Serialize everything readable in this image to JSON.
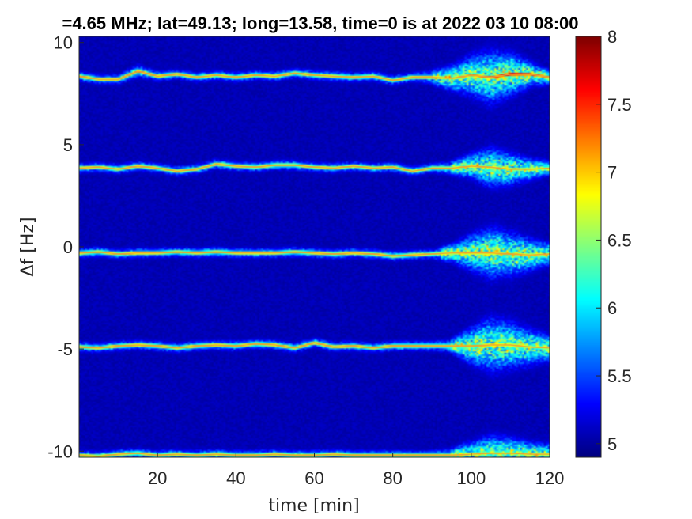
{
  "chart_data": {
    "type": "heatmap",
    "title": "=4.65 MHz;  lat=49.13; long=13.58, time=0 is at 2022 03 10 08:00",
    "xlabel": "time [min]",
    "ylabel": "Δf [Hz]",
    "xlim": [
      0,
      120
    ],
    "ylim": [
      -10.3,
      10.3
    ],
    "x_ticks": [
      20,
      40,
      60,
      80,
      100,
      120
    ],
    "x_tick_labels": [
      "20",
      "40",
      "60",
      "80",
      "100",
      "120"
    ],
    "y_ticks": [
      10,
      5,
      0,
      -5,
      -10
    ],
    "y_tick_labels": [
      "10",
      "5",
      "0",
      "-5",
      "-10"
    ],
    "colormap": "jet",
    "clim": [
      4.9,
      8
    ],
    "colorbar_ticks": [
      8,
      7.5,
      7,
      6.5,
      6,
      5.5,
      5
    ],
    "colorbar_tick_labels": [
      "8",
      "7.5",
      "7",
      "6.5",
      "6",
      "5.5",
      "5"
    ],
    "background_level": 5.0,
    "series": [
      {
        "center_hz": 8.4,
        "x": [
          0,
          5,
          10,
          15,
          20,
          25,
          30,
          35,
          40,
          45,
          50,
          55,
          60,
          65,
          70,
          75,
          80,
          85,
          90,
          95,
          100,
          105,
          110,
          115,
          120
        ],
        "y": [
          8.35,
          8.2,
          8.2,
          8.6,
          8.35,
          8.45,
          8.3,
          8.4,
          8.3,
          8.4,
          8.35,
          8.5,
          8.4,
          8.35,
          8.3,
          8.35,
          8.15,
          8.3,
          8.3,
          8.25,
          8.4,
          8.3,
          8.45,
          8.45,
          8.3
        ],
        "peak": [
          7.2,
          7.0,
          7.1,
          7.3,
          7.1,
          7.0,
          7.0,
          7.0,
          7.0,
          7.1,
          7.0,
          7.1,
          7.0,
          7.0,
          7.0,
          7.0,
          7.0,
          7.0,
          7.1,
          7.0,
          7.3,
          7.4,
          7.9,
          7.6,
          7.2
        ],
        "spread": [
          0.15,
          0.15,
          0.15,
          0.2,
          0.15,
          0.15,
          0.15,
          0.15,
          0.15,
          0.15,
          0.15,
          0.15,
          0.15,
          0.15,
          0.15,
          0.15,
          0.15,
          0.15,
          0.2,
          0.35,
          0.55,
          0.75,
          0.6,
          0.35,
          0.2
        ]
      },
      {
        "center_hz": 3.9,
        "x": [
          0,
          5,
          10,
          15,
          20,
          25,
          30,
          35,
          40,
          45,
          50,
          55,
          60,
          65,
          70,
          75,
          80,
          85,
          90,
          95,
          100,
          105,
          110,
          115,
          120
        ],
        "y": [
          3.85,
          3.9,
          3.8,
          3.95,
          3.85,
          3.7,
          3.8,
          4.05,
          3.95,
          3.9,
          4.0,
          4.0,
          3.9,
          3.85,
          3.95,
          3.85,
          3.9,
          3.7,
          3.85,
          3.85,
          3.95,
          3.9,
          3.8,
          3.8,
          3.85
        ],
        "peak": [
          7.1,
          7.0,
          7.0,
          7.1,
          7.0,
          7.0,
          7.0,
          7.0,
          7.0,
          7.0,
          7.0,
          7.0,
          7.0,
          7.0,
          7.0,
          7.0,
          7.0,
          7.0,
          7.0,
          7.0,
          7.1,
          7.0,
          6.9,
          6.8,
          6.9
        ],
        "spread": [
          0.15,
          0.15,
          0.15,
          0.15,
          0.15,
          0.15,
          0.15,
          0.15,
          0.15,
          0.15,
          0.15,
          0.15,
          0.15,
          0.15,
          0.15,
          0.15,
          0.15,
          0.15,
          0.15,
          0.2,
          0.35,
          0.55,
          0.45,
          0.3,
          0.2
        ]
      },
      {
        "center_hz": -0.3,
        "x": [
          0,
          5,
          10,
          15,
          20,
          25,
          30,
          35,
          40,
          45,
          50,
          55,
          60,
          65,
          70,
          75,
          80,
          85,
          90,
          95,
          100,
          105,
          110,
          115,
          120
        ],
        "y": [
          -0.3,
          -0.25,
          -0.35,
          -0.3,
          -0.3,
          -0.25,
          -0.3,
          -0.25,
          -0.3,
          -0.3,
          -0.3,
          -0.25,
          -0.3,
          -0.35,
          -0.3,
          -0.35,
          -0.45,
          -0.4,
          -0.35,
          -0.3,
          -0.3,
          -0.3,
          -0.35,
          -0.4,
          -0.35
        ],
        "peak": [
          7.2,
          7.1,
          7.1,
          7.2,
          7.1,
          7.1,
          7.1,
          7.1,
          7.1,
          7.1,
          7.1,
          7.1,
          7.1,
          7.1,
          7.1,
          7.1,
          7.1,
          7.1,
          7.0,
          7.0,
          7.2,
          7.2,
          7.1,
          7.0,
          6.9
        ],
        "spread": [
          0.15,
          0.15,
          0.15,
          0.15,
          0.15,
          0.15,
          0.15,
          0.15,
          0.15,
          0.15,
          0.15,
          0.15,
          0.15,
          0.15,
          0.15,
          0.15,
          0.15,
          0.15,
          0.15,
          0.25,
          0.5,
          0.7,
          0.6,
          0.45,
          0.3
        ]
      },
      {
        "center_hz": -4.9,
        "x": [
          0,
          5,
          10,
          15,
          20,
          25,
          30,
          35,
          40,
          45,
          50,
          55,
          60,
          65,
          70,
          75,
          80,
          85,
          90,
          95,
          100,
          105,
          110,
          115,
          120
        ],
        "y": [
          -4.9,
          -4.95,
          -4.85,
          -4.8,
          -4.85,
          -4.95,
          -4.85,
          -4.8,
          -4.85,
          -4.75,
          -4.8,
          -4.95,
          -4.7,
          -4.9,
          -4.85,
          -4.95,
          -4.85,
          -4.85,
          -4.85,
          -4.85,
          -4.85,
          -4.8,
          -4.8,
          -4.9,
          -4.95
        ],
        "peak": [
          7.2,
          7.1,
          7.1,
          7.1,
          7.1,
          7.1,
          7.1,
          7.1,
          7.1,
          7.1,
          7.1,
          7.1,
          7.1,
          7.1,
          7.1,
          7.1,
          7.1,
          7.1,
          7.0,
          7.0,
          7.1,
          7.2,
          7.0,
          6.9,
          6.9
        ],
        "spread": [
          0.15,
          0.15,
          0.15,
          0.15,
          0.15,
          0.15,
          0.15,
          0.15,
          0.15,
          0.15,
          0.15,
          0.15,
          0.15,
          0.15,
          0.15,
          0.15,
          0.15,
          0.15,
          0.15,
          0.2,
          0.5,
          0.75,
          0.65,
          0.5,
          0.35
        ]
      },
      {
        "center_hz": -10.2,
        "x": [
          0,
          5,
          10,
          15,
          20,
          25,
          30,
          35,
          40,
          45,
          50,
          55,
          60,
          65,
          70,
          75,
          80,
          85,
          90,
          95,
          100,
          105,
          110,
          115,
          120
        ],
        "y": [
          -10.2,
          -10.25,
          -10.15,
          -10.1,
          -10.2,
          -10.15,
          -10.2,
          -10.15,
          -10.2,
          -10.2,
          -10.15,
          -10.2,
          -10.2,
          -10.15,
          -10.2,
          -10.2,
          -10.2,
          -10.2,
          -10.2,
          -10.2,
          -10.15,
          -10.1,
          -10.1,
          -10.15,
          -10.15
        ],
        "peak": [
          7.0,
          7.0,
          7.0,
          7.0,
          7.0,
          7.0,
          7.0,
          7.0,
          7.0,
          7.0,
          7.0,
          7.0,
          7.0,
          7.0,
          7.0,
          7.0,
          7.0,
          7.0,
          7.0,
          7.0,
          7.0,
          7.0,
          7.0,
          6.9,
          6.9
        ],
        "spread": [
          0.15,
          0.15,
          0.15,
          0.15,
          0.15,
          0.15,
          0.15,
          0.15,
          0.15,
          0.15,
          0.15,
          0.15,
          0.15,
          0.15,
          0.15,
          0.15,
          0.15,
          0.15,
          0.15,
          0.2,
          0.35,
          0.5,
          0.45,
          0.35,
          0.3
        ]
      }
    ]
  }
}
